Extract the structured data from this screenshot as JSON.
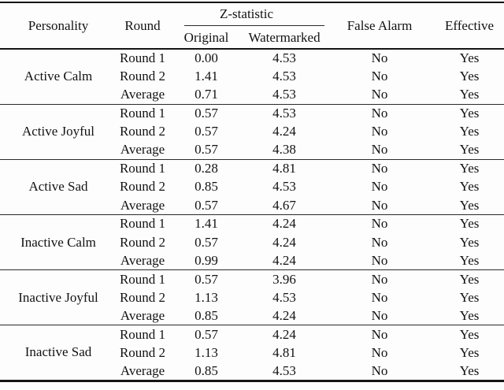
{
  "table": {
    "headers": {
      "personality": "Personality",
      "round": "Round",
      "z_statistic": "Z-statistic",
      "original": "Original",
      "watermarked": "Watermarked",
      "false_alarm": "False Alarm",
      "effective": "Effective"
    },
    "groups": [
      {
        "personality": "Active Calm",
        "rows": [
          {
            "round": "Round 1",
            "original": "0.00",
            "watermarked": "4.53",
            "false_alarm": "No",
            "effective": "Yes"
          },
          {
            "round": "Round 2",
            "original": "1.41",
            "watermarked": "4.53",
            "false_alarm": "No",
            "effective": "Yes"
          },
          {
            "round": "Average",
            "original": "0.71",
            "watermarked": "4.53",
            "false_alarm": "No",
            "effective": "Yes"
          }
        ]
      },
      {
        "personality": "Active Joyful",
        "rows": [
          {
            "round": "Round 1",
            "original": "0.57",
            "watermarked": "4.53",
            "false_alarm": "No",
            "effective": "Yes"
          },
          {
            "round": "Round 2",
            "original": "0.57",
            "watermarked": "4.24",
            "false_alarm": "No",
            "effective": "Yes"
          },
          {
            "round": "Average",
            "original": "0.57",
            "watermarked": "4.38",
            "false_alarm": "No",
            "effective": "Yes"
          }
        ]
      },
      {
        "personality": "Active Sad",
        "rows": [
          {
            "round": "Round 1",
            "original": "0.28",
            "watermarked": "4.81",
            "false_alarm": "No",
            "effective": "Yes"
          },
          {
            "round": "Round 2",
            "original": "0.85",
            "watermarked": "4.53",
            "false_alarm": "No",
            "effective": "Yes"
          },
          {
            "round": "Average",
            "original": "0.57",
            "watermarked": "4.67",
            "false_alarm": "No",
            "effective": "Yes"
          }
        ]
      },
      {
        "personality": "Inactive Calm",
        "rows": [
          {
            "round": "Round 1",
            "original": "1.41",
            "watermarked": "4.24",
            "false_alarm": "No",
            "effective": "Yes"
          },
          {
            "round": "Round 2",
            "original": "0.57",
            "watermarked": "4.24",
            "false_alarm": "No",
            "effective": "Yes"
          },
          {
            "round": "Average",
            "original": "0.99",
            "watermarked": "4.24",
            "false_alarm": "No",
            "effective": "Yes"
          }
        ]
      },
      {
        "personality": "Inactive Joyful",
        "rows": [
          {
            "round": "Round 1",
            "original": "0.57",
            "watermarked": "3.96",
            "false_alarm": "No",
            "effective": "Yes"
          },
          {
            "round": "Round 2",
            "original": "1.13",
            "watermarked": "4.53",
            "false_alarm": "No",
            "effective": "Yes"
          },
          {
            "round": "Average",
            "original": "0.85",
            "watermarked": "4.24",
            "false_alarm": "No",
            "effective": "Yes"
          }
        ]
      },
      {
        "personality": "Inactive Sad",
        "rows": [
          {
            "round": "Round 1",
            "original": "0.57",
            "watermarked": "4.24",
            "false_alarm": "No",
            "effective": "Yes"
          },
          {
            "round": "Round 2",
            "original": "1.13",
            "watermarked": "4.81",
            "false_alarm": "No",
            "effective": "Yes"
          },
          {
            "round": "Average",
            "original": "0.85",
            "watermarked": "4.53",
            "false_alarm": "No",
            "effective": "Yes"
          }
        ]
      }
    ],
    "colors": {
      "text": "#121212",
      "rule": "#141414",
      "background": "#fdfdfd"
    }
  }
}
